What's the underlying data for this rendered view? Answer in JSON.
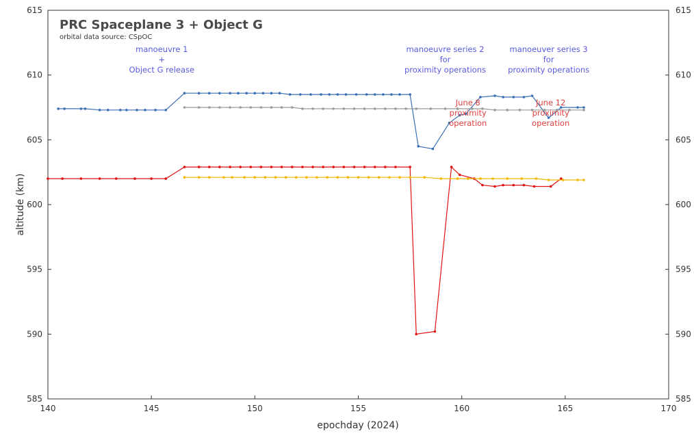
{
  "chart_data": {
    "type": "line",
    "title": "PRC Spaceplane 3 + Object G",
    "subtitle": "orbital data source: CSpOC",
    "xlabel": "epochday (2024)",
    "ylabel": "altitude (km)",
    "xlim": [
      140,
      170
    ],
    "ylim": [
      585,
      615
    ],
    "xticks": [
      140,
      145,
      150,
      155,
      160,
      165,
      170
    ],
    "yticks": [
      585,
      590,
      595,
      600,
      605,
      610,
      615
    ],
    "xtick_labels": [
      "140",
      "145",
      "150",
      "155",
      "160",
      "165",
      "170"
    ],
    "ytick_labels": [
      "585",
      "590",
      "595",
      "600",
      "605",
      "610",
      "615"
    ],
    "ytick_labels_right": [
      "585",
      "590",
      "595",
      "600",
      "605",
      "610",
      "615"
    ],
    "grid": false,
    "colors": {
      "blue": "#3a6fb5",
      "gray": "#9a9a9a",
      "red": "#e01010",
      "orange": "#f2b800",
      "ann_blue": "#5a5adf",
      "ann_red": "#e04040"
    },
    "series": [
      {
        "color": "blue",
        "x": [
          140.5,
          140.8,
          141.6,
          141.8,
          142.5,
          142.9,
          143.5,
          143.8,
          144.3,
          144.7,
          145.2,
          145.7,
          146.6,
          147.3,
          147.8,
          148.3,
          148.8,
          149.2,
          149.6,
          150.0,
          150.4,
          150.8,
          151.2,
          151.7,
          152.2,
          152.7,
          153.2,
          153.6,
          154.0,
          154.4,
          154.9,
          155.4,
          155.8,
          156.2,
          156.6,
          157.0,
          157.5,
          157.9,
          158.6,
          159.4,
          159.9,
          160.2,
          160.9,
          161.6,
          162.0,
          162.5,
          163.0,
          163.4,
          164.2,
          164.8,
          165.6,
          165.9
        ],
        "y": [
          607.4,
          607.4,
          607.4,
          607.4,
          607.3,
          607.3,
          607.3,
          607.3,
          607.3,
          607.3,
          607.3,
          607.3,
          608.6,
          608.6,
          608.6,
          608.6,
          608.6,
          608.6,
          608.6,
          608.6,
          608.6,
          608.6,
          608.6,
          608.5,
          608.5,
          608.5,
          608.5,
          608.5,
          608.5,
          608.5,
          608.5,
          608.5,
          608.5,
          608.5,
          608.5,
          608.5,
          608.5,
          604.5,
          604.3,
          606.3,
          606.9,
          607.0,
          608.3,
          608.4,
          608.3,
          608.3,
          608.3,
          608.4,
          606.7,
          607.5,
          607.5,
          607.5
        ]
      },
      {
        "color": "gray",
        "x": [
          146.6,
          147.3,
          147.8,
          148.3,
          148.8,
          149.3,
          149.8,
          150.3,
          150.8,
          151.3,
          151.8,
          152.3,
          152.8,
          153.3,
          153.8,
          154.3,
          154.8,
          155.3,
          155.8,
          156.3,
          156.8,
          157.3,
          157.8,
          158.5,
          159.2,
          159.8,
          160.5,
          161.0,
          161.6,
          162.2,
          162.8,
          163.4,
          164.0,
          164.6,
          165.2,
          165.9
        ],
        "y": [
          607.5,
          607.5,
          607.5,
          607.5,
          607.5,
          607.5,
          607.5,
          607.5,
          607.5,
          607.5,
          607.5,
          607.4,
          607.4,
          607.4,
          607.4,
          607.4,
          607.4,
          607.4,
          607.4,
          607.4,
          607.4,
          607.4,
          607.4,
          607.4,
          607.4,
          607.4,
          607.4,
          607.4,
          607.3,
          607.3,
          607.3,
          607.3,
          607.3,
          607.3,
          607.3,
          607.3
        ]
      },
      {
        "color": "red",
        "x": [
          140.0,
          140.7,
          141.6,
          142.5,
          143.3,
          144.2,
          145.0,
          145.7,
          146.6,
          147.3,
          147.8,
          148.3,
          148.8,
          149.3,
          149.8,
          150.3,
          150.8,
          151.3,
          151.8,
          152.3,
          152.8,
          153.3,
          153.8,
          154.3,
          154.8,
          155.3,
          155.8,
          156.3,
          156.8,
          157.5,
          157.8,
          158.7,
          159.5,
          159.9,
          160.6,
          161.0,
          161.6,
          162.0,
          162.5,
          163.0,
          163.5,
          164.3,
          164.8
        ],
        "y": [
          602.0,
          602.0,
          602.0,
          602.0,
          602.0,
          602.0,
          602.0,
          602.0,
          602.9,
          602.9,
          602.9,
          602.9,
          602.9,
          602.9,
          602.9,
          602.9,
          602.9,
          602.9,
          602.9,
          602.9,
          602.9,
          602.9,
          602.9,
          602.9,
          602.9,
          602.9,
          602.9,
          602.9,
          602.9,
          602.9,
          590.0,
          590.2,
          602.9,
          602.3,
          602.0,
          601.5,
          601.4,
          601.5,
          601.5,
          601.5,
          601.4,
          601.4,
          602.0
        ]
      },
      {
        "color": "orange",
        "x": [
          146.6,
          147.3,
          147.8,
          148.5,
          148.9,
          149.5,
          150.0,
          150.5,
          151.0,
          151.5,
          152.0,
          152.5,
          153.0,
          153.5,
          154.0,
          154.5,
          155.0,
          155.5,
          156.0,
          156.5,
          157.0,
          157.5,
          158.2,
          159.0,
          159.8,
          160.3,
          160.9,
          161.5,
          162.2,
          162.9,
          163.6,
          164.2,
          164.9,
          165.6,
          165.9
        ],
        "y": [
          602.1,
          602.1,
          602.1,
          602.1,
          602.1,
          602.1,
          602.1,
          602.1,
          602.1,
          602.1,
          602.1,
          602.1,
          602.1,
          602.1,
          602.1,
          602.1,
          602.1,
          602.1,
          602.1,
          602.1,
          602.1,
          602.1,
          602.1,
          602.0,
          602.0,
          602.0,
          602.0,
          602.0,
          602.0,
          602.0,
          602.0,
          601.9,
          601.9,
          601.9,
          601.9
        ]
      }
    ],
    "annotations": [
      {
        "color": "ann_blue",
        "x": 145.5,
        "y": 610.5,
        "lines": [
          "manoeuvre 1",
          "+",
          "Object G release"
        ]
      },
      {
        "color": "ann_blue",
        "x": 159.2,
        "y": 610.5,
        "lines": [
          "manoeuvre series 2",
          "for",
          "proximity operations"
        ]
      },
      {
        "color": "ann_blue",
        "x": 164.2,
        "y": 610.5,
        "lines": [
          "manoeuver series 3",
          "for",
          "proximity operations"
        ]
      },
      {
        "color": "ann_red",
        "x": 160.3,
        "y": 606.4,
        "lines": [
          "June 8",
          "proximity",
          "operation"
        ]
      },
      {
        "color": "ann_red",
        "x": 164.3,
        "y": 606.4,
        "lines": [
          "June 12",
          "proximity",
          "operation"
        ]
      }
    ]
  }
}
